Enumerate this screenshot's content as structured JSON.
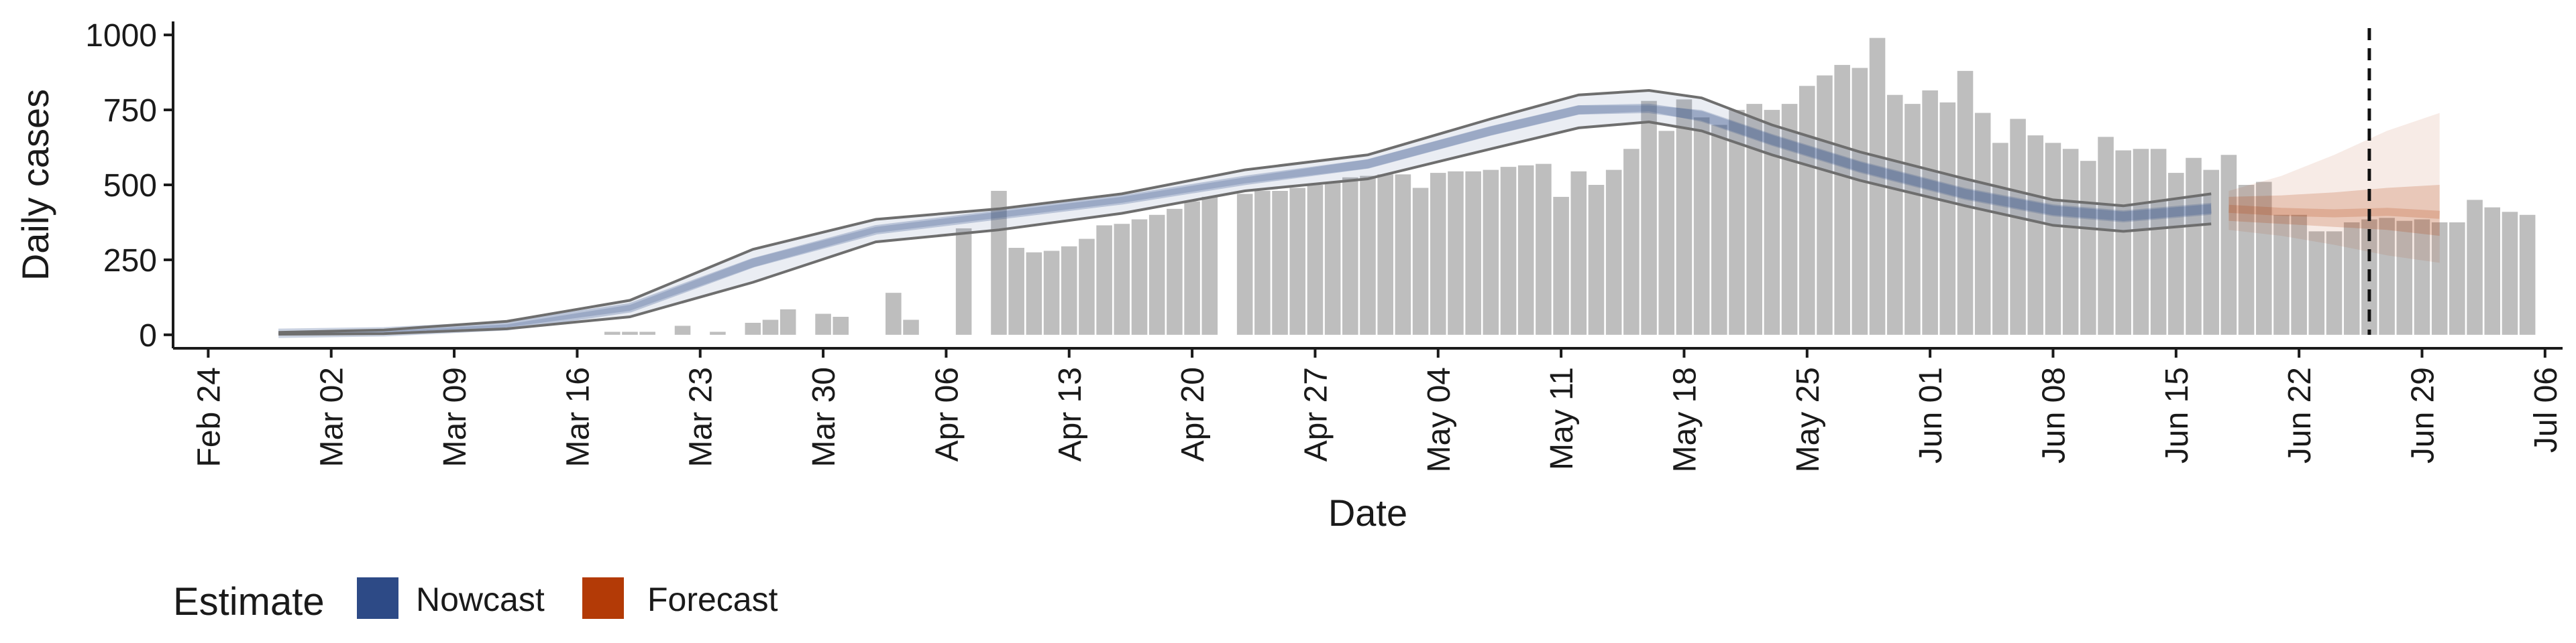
{
  "chart_data": {
    "type": "bar",
    "title": "",
    "xlabel": "Date",
    "ylabel": "Daily cases",
    "x_tick_labels": [
      "Feb 24",
      "Mar 02",
      "Mar 09",
      "Mar 16",
      "Mar 23",
      "Mar 30",
      "Apr 06",
      "Apr 13",
      "Apr 20",
      "Apr 27",
      "May 04",
      "May 11",
      "May 18",
      "May 25",
      "Jun 01",
      "Jun 08",
      "Jun 15",
      "Jun 22",
      "Jun 29",
      "Jul 06"
    ],
    "x_tick_dates": [
      "2020-02-24",
      "2020-03-02",
      "2020-03-09",
      "2020-03-16",
      "2020-03-23",
      "2020-03-30",
      "2020-04-06",
      "2020-04-13",
      "2020-04-20",
      "2020-04-27",
      "2020-05-04",
      "2020-05-11",
      "2020-05-18",
      "2020-05-25",
      "2020-06-01",
      "2020-06-08",
      "2020-06-15",
      "2020-06-22",
      "2020-06-29",
      "2020-07-06"
    ],
    "xlim": [
      "2020-02-22",
      "2020-07-07"
    ],
    "y_ticks": [
      0,
      250,
      500,
      750,
      1000
    ],
    "y_tick_labels": [
      "0",
      "250",
      "500",
      "750",
      "1000"
    ],
    "ylim": [
      -45,
      1045
    ],
    "grid": false,
    "legend": {
      "title": "Estimate",
      "position": "bottom-left",
      "entries": [
        {
          "label": "Nowcast",
          "color": "#2d4a86"
        },
        {
          "label": "Forecast",
          "color": "#b33a06"
        }
      ]
    },
    "colors": {
      "bars": "#bebebe",
      "nowcast": "#2d4a86",
      "forecast": "#b33a06",
      "outline": "#6e6e6e",
      "axis": "#1a1a1a"
    },
    "reference_line": {
      "date": "2020-06-26",
      "style": "dashed"
    },
    "daily_cases": {
      "start_date": "2020-02-28",
      "values": [
        0,
        0,
        0,
        0,
        0,
        0,
        0,
        0,
        0,
        0,
        0,
        0,
        0,
        0,
        0,
        0,
        0,
        0,
        0,
        10,
        10,
        10,
        0,
        30,
        0,
        10,
        0,
        40,
        50,
        85,
        0,
        70,
        60,
        0,
        0,
        140,
        50,
        0,
        0,
        355,
        0,
        480,
        290,
        275,
        280,
        295,
        320,
        365,
        370,
        385,
        400,
        420,
        445,
        460,
        0,
        470,
        480,
        480,
        490,
        500,
        510,
        525,
        530,
        535,
        535,
        490,
        540,
        545,
        545,
        550,
        560,
        565,
        570,
        460,
        545,
        500,
        550,
        620,
        780,
        680,
        785,
        725,
        700,
        750,
        770,
        750,
        770,
        830,
        865,
        900,
        890,
        990,
        800,
        770,
        815,
        775,
        880,
        740,
        640,
        720,
        665,
        640,
        620,
        580,
        660,
        615,
        620,
        620,
        540,
        590,
        550,
        600,
        500,
        510,
        400,
        400,
        345,
        345,
        375,
        385,
        390,
        380,
        385,
        375,
        375,
        450,
        425,
        410,
        400
      ]
    },
    "nowcast": {
      "start_date": "2020-02-28",
      "end_date": "2020-06-17",
      "dates": [
        "2020-02-28",
        "2020-03-05",
        "2020-03-12",
        "2020-03-19",
        "2020-03-26",
        "2020-04-02",
        "2020-04-09",
        "2020-04-16",
        "2020-04-23",
        "2020-04-30",
        "2020-05-07",
        "2020-05-12",
        "2020-05-16",
        "2020-05-19",
        "2020-05-23",
        "2020-05-28",
        "2020-06-03",
        "2020-06-08",
        "2020-06-12",
        "2020-06-17"
      ],
      "median": [
        5,
        10,
        30,
        90,
        240,
        350,
        400,
        450,
        515,
        570,
        680,
        750,
        755,
        730,
        650,
        560,
        470,
        415,
        395,
        420
      ],
      "inner_lower": [
        4,
        8,
        25,
        80,
        225,
        340,
        390,
        440,
        505,
        555,
        665,
        735,
        745,
        710,
        630,
        540,
        450,
        395,
        375,
        400
      ],
      "inner_upper": [
        6,
        12,
        35,
        100,
        255,
        360,
        410,
        460,
        525,
        585,
        695,
        765,
        765,
        750,
        670,
        580,
        490,
        435,
        415,
        440
      ],
      "outer_lower": [
        2,
        4,
        20,
        60,
        175,
        310,
        350,
        405,
        480,
        520,
        620,
        690,
        710,
        680,
        600,
        515,
        430,
        365,
        345,
        370
      ],
      "outer_upper": [
        8,
        16,
        45,
        115,
        285,
        385,
        420,
        470,
        550,
        600,
        720,
        800,
        815,
        790,
        700,
        610,
        520,
        450,
        430,
        470
      ]
    },
    "forecast": {
      "start_date": "2020-06-18",
      "end_date": "2020-06-30",
      "dates": [
        "2020-06-18",
        "2020-06-21",
        "2020-06-24",
        "2020-06-27",
        "2020-06-30"
      ],
      "median": [
        420,
        410,
        405,
        410,
        400
      ],
      "inner_lower": [
        380,
        370,
        360,
        350,
        330
      ],
      "inner_upper": [
        460,
        465,
        475,
        490,
        500
      ],
      "outer_lower": [
        350,
        330,
        300,
        265,
        240
      ],
      "outer_upper": [
        480,
        530,
        600,
        680,
        740
      ]
    }
  }
}
